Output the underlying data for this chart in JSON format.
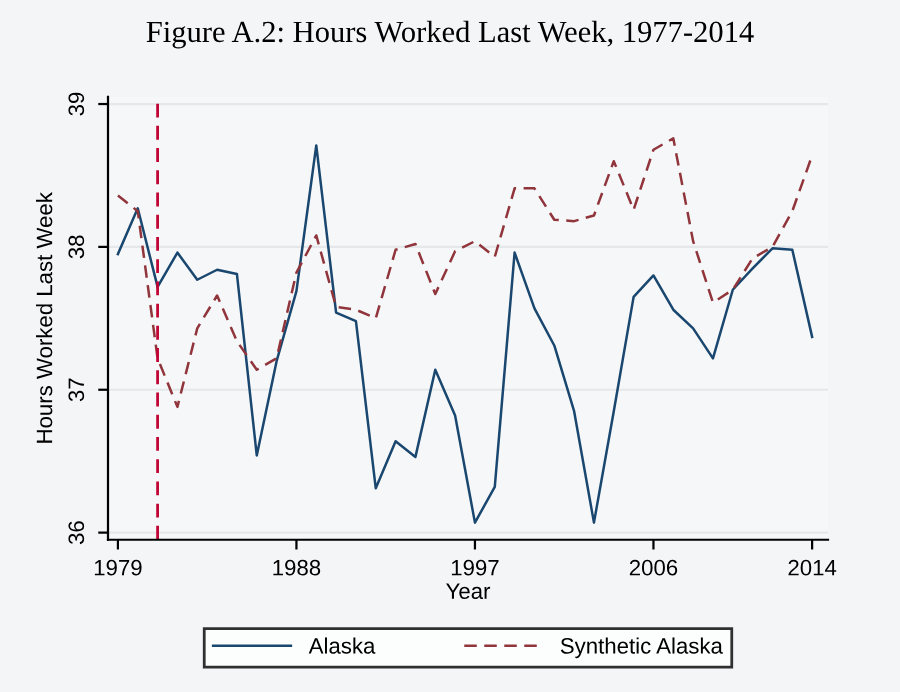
{
  "chart_data": {
    "type": "line",
    "title": "Figure A.2: Hours Worked Last Week, 1977-2014",
    "xlabel": "Year",
    "ylabel": "Hours Worked Last Week",
    "x": [
      1979,
      1980,
      1981,
      1982,
      1983,
      1984,
      1985,
      1986,
      1987,
      1988,
      1989,
      1990,
      1991,
      1992,
      1993,
      1994,
      1995,
      1996,
      1997,
      1998,
      1999,
      2000,
      2001,
      2002,
      2003,
      2004,
      2005,
      2006,
      2007,
      2008,
      2009,
      2010,
      2011,
      2012,
      2013,
      2014
    ],
    "series": [
      {
        "name": "Alaska",
        "color": "#1a476f",
        "line_style": "solid",
        "values": [
          37.95,
          38.27,
          37.72,
          37.96,
          37.77,
          37.84,
          37.81,
          36.54,
          37.2,
          37.69,
          38.71,
          37.54,
          37.48,
          36.31,
          36.64,
          36.53,
          37.14,
          36.82,
          36.07,
          36.32,
          37.96,
          37.57,
          37.31,
          36.85,
          36.07,
          36.85,
          37.65,
          37.8,
          37.56,
          37.43,
          37.22,
          37.7,
          37.85,
          37.99,
          37.98,
          37.37
        ]
      },
      {
        "name": "Synthetic Alaska",
        "color": "#90353b",
        "line_style": "dashed",
        "values": [
          38.36,
          38.25,
          37.22,
          36.88,
          37.43,
          37.66,
          37.34,
          37.14,
          37.22,
          37.82,
          38.08,
          37.58,
          37.56,
          37.5,
          37.98,
          38.02,
          37.67,
          37.97,
          38.04,
          37.93,
          38.41,
          38.41,
          38.19,
          38.18,
          38.22,
          38.6,
          38.26,
          38.68,
          38.76,
          38.04,
          37.61,
          37.7,
          37.92,
          38.0,
          38.25,
          38.64
        ]
      }
    ],
    "xlim": [
      1978.5,
      2014.8
    ],
    "ylim": [
      35.95,
      39.05
    ],
    "xticks": [
      1979,
      1988,
      1997,
      2006,
      2014
    ],
    "yticks": [
      36,
      37,
      38,
      39
    ],
    "ref_lines": [
      {
        "axis": "x",
        "value": 1981,
        "color": "#c10534",
        "line_style": "dashed"
      }
    ],
    "grid": "y",
    "legend": "bottom",
    "marker": "none"
  }
}
